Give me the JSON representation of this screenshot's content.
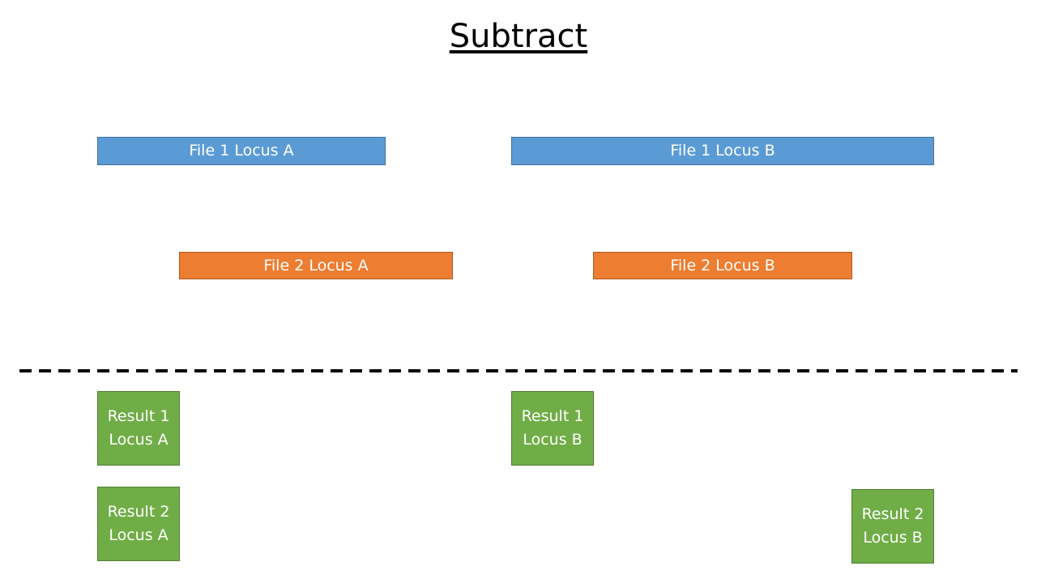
{
  "title": "Subtract",
  "file1": {
    "locus_a": "File 1 Locus A",
    "locus_b": "File 1 Locus B"
  },
  "file2": {
    "locus_a": "File 2 Locus A",
    "locus_b": "File 2 Locus B"
  },
  "results": {
    "result1_locus_a": "Result 1\nLocus A",
    "result1_locus_b": "Result 1\nLocus B",
    "result2_locus_a": "Result 2\nLocus A",
    "result2_locus_b": "Result 2\nLocus B"
  },
  "colors": {
    "file1": "#5b9bd5",
    "file2": "#ed7d31",
    "result": "#70ad47"
  }
}
